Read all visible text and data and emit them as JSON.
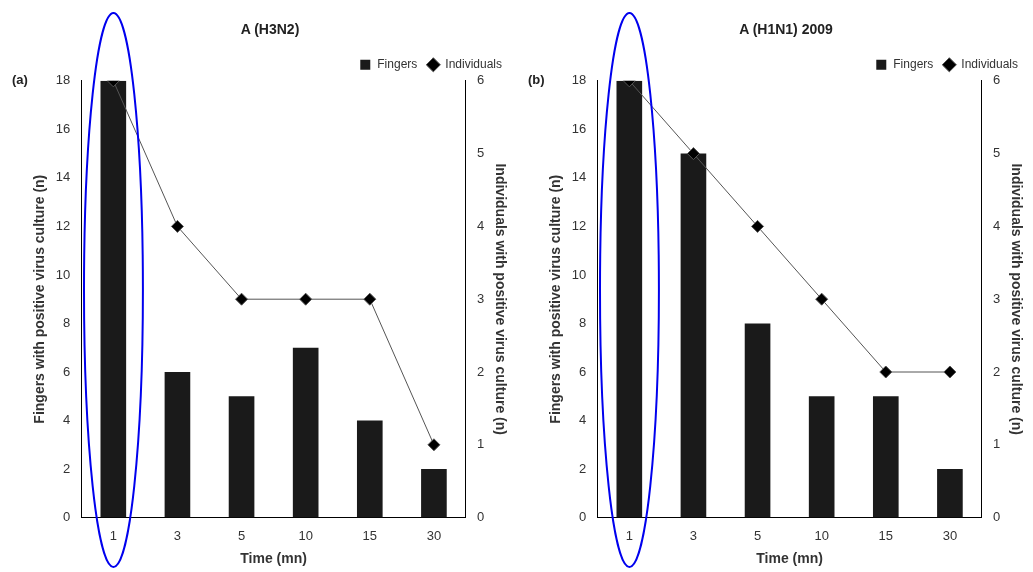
{
  "chart_data": [
    {
      "type": "bar",
      "title": "A (H3N2)",
      "annotations": [
        "(a)"
      ],
      "xlabel": "Time (mn)",
      "ylabel": "Fingers with positive virus culture (n)",
      "y2label": "Individuals with positive virus culture (n)",
      "categories": [
        "1",
        "3",
        "5",
        "10",
        "15",
        "30"
      ],
      "series": [
        {
          "name": "Fingers",
          "color": "#1a1a1a",
          "values": [
            18,
            6,
            5,
            7,
            4,
            2
          ]
        },
        {
          "name": "Individuals",
          "type": "line",
          "axis": "y2",
          "color": "#555555",
          "values": [
            6,
            4,
            3,
            3,
            3,
            1
          ]
        }
      ],
      "ylim": [
        0,
        18
      ],
      "yticks": [
        0,
        2,
        4,
        6,
        8,
        10,
        12,
        14,
        16,
        18
      ],
      "y2lim": [
        0,
        6
      ],
      "y2ticks": [
        0,
        1,
        2,
        3,
        4,
        5,
        6
      ],
      "marker": "diamond",
      "legend": "top right",
      "grid": false
    },
    {
      "type": "bar",
      "title": "A (H1N1) 2009",
      "annotations": [
        "(b)"
      ],
      "xlabel": "Time (mn)",
      "ylabel": "Fingers with positive virus culture (n)",
      "y2label": "Individuals with positive virus culture (n)",
      "categories": [
        "1",
        "3",
        "5",
        "10",
        "15",
        "30"
      ],
      "series": [
        {
          "name": "Fingers",
          "color": "#1a1a1a",
          "values": [
            18,
            15,
            8,
            5,
            5,
            2
          ]
        },
        {
          "name": "Individuals",
          "type": "line",
          "axis": "y2",
          "color": "#555555",
          "values": [
            6,
            5,
            4,
            3,
            2,
            2
          ]
        }
      ],
      "ylim": [
        0,
        18
      ],
      "yticks": [
        0,
        2,
        4,
        6,
        8,
        10,
        12,
        14,
        16,
        18
      ],
      "y2lim": [
        0,
        6
      ],
      "y2ticks": [
        0,
        1,
        2,
        3,
        4,
        5,
        6
      ],
      "marker": "diamond",
      "legend": "top right",
      "grid": false
    }
  ]
}
